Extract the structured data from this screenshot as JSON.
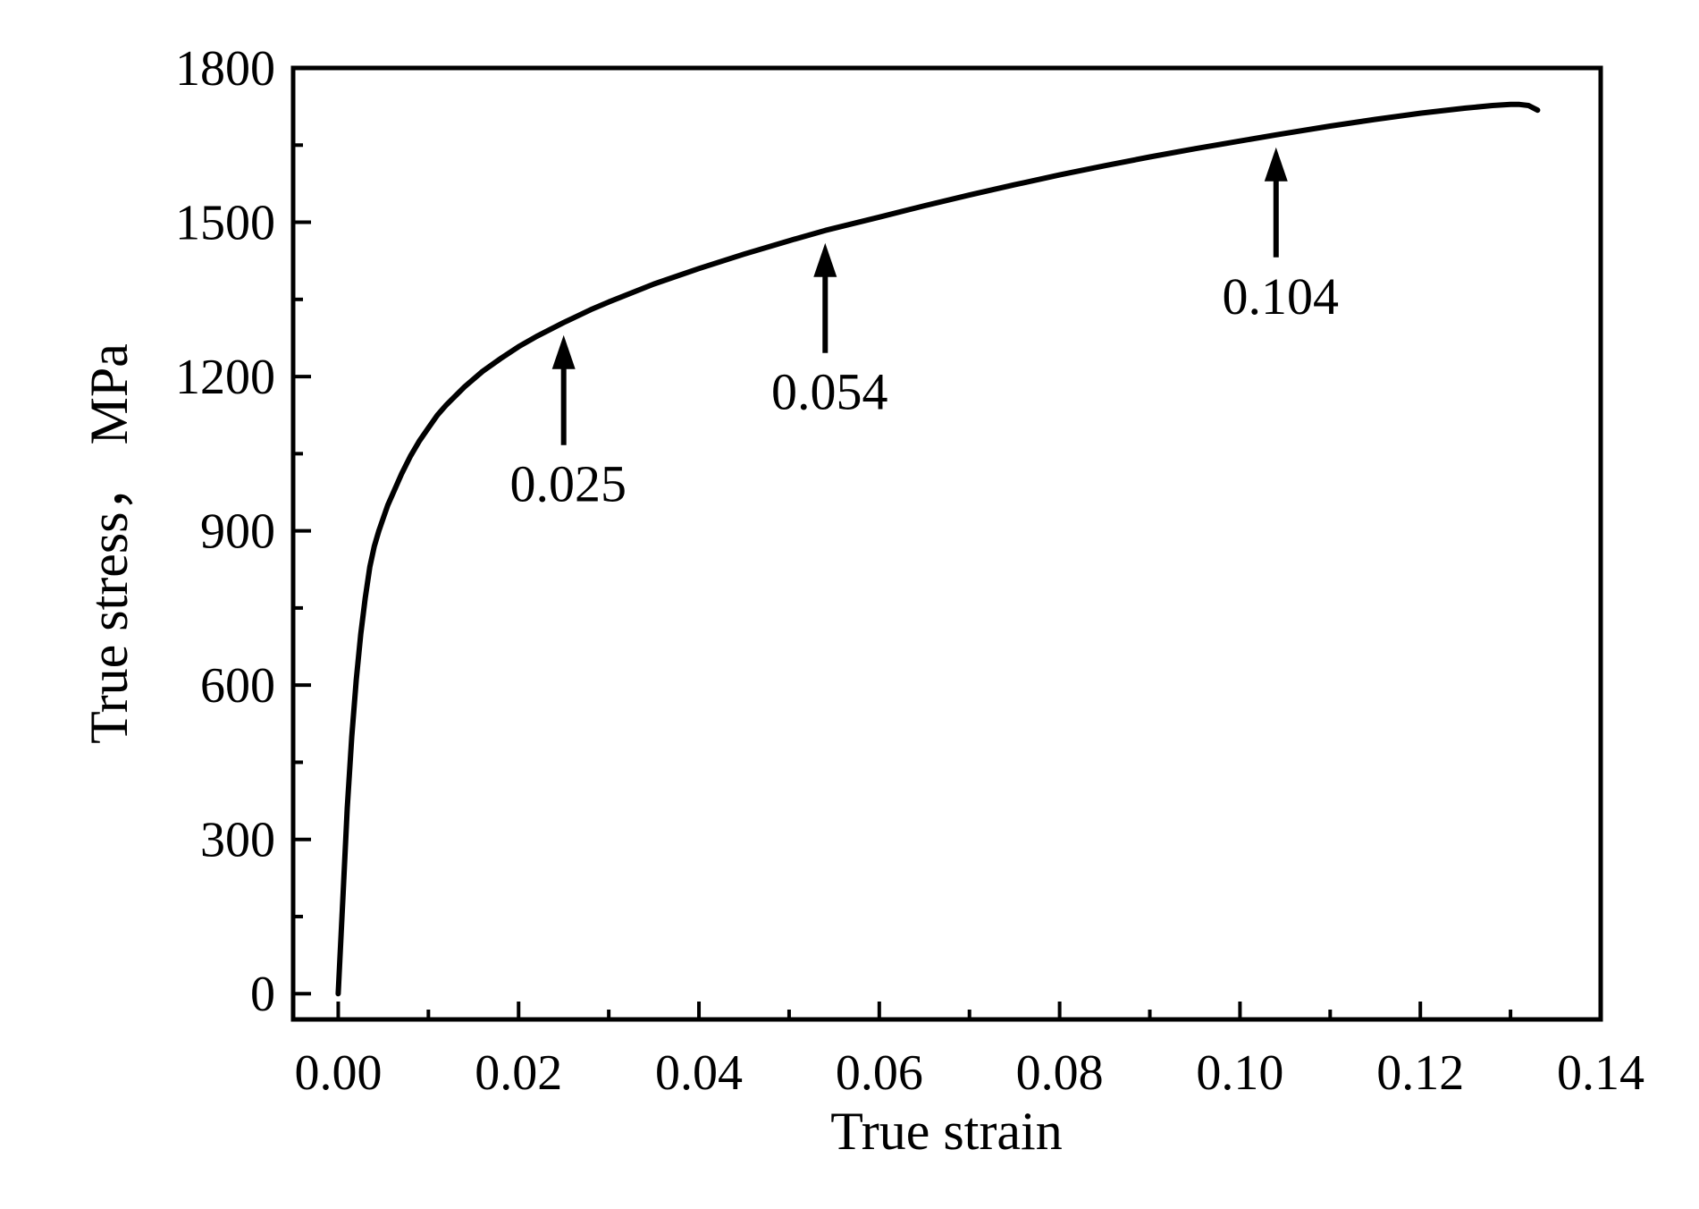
{
  "chart_data": {
    "type": "line",
    "xlabel": "True strain",
    "ylabel": "True stress，  MPa",
    "xlim": [
      -0.005,
      0.14
    ],
    "ylim": [
      -50,
      1800
    ],
    "x_ticks": [
      0.0,
      0.02,
      0.04,
      0.06,
      0.08,
      0.1,
      0.12,
      0.14
    ],
    "x_tick_labels": [
      "0.00",
      "0.02",
      "0.04",
      "0.06",
      "0.08",
      "0.10",
      "0.12",
      "0.14"
    ],
    "x_minor_ticks": [
      0.01,
      0.03,
      0.05,
      0.07,
      0.09,
      0.11,
      0.13
    ],
    "y_ticks": [
      0,
      300,
      600,
      900,
      1200,
      1500,
      1800
    ],
    "y_tick_labels": [
      "0",
      "300",
      "600",
      "900",
      "1200",
      "1500",
      "1800"
    ],
    "y_minor_ticks": [
      150,
      450,
      750,
      1050,
      1350,
      1650
    ],
    "grid": false,
    "line_color": "#000000",
    "series": [
      {
        "x": [
          0.0,
          0.0005,
          0.001,
          0.0015,
          0.002,
          0.0025,
          0.003,
          0.0035,
          0.004,
          0.0045,
          0.005,
          0.0055,
          0.006,
          0.007,
          0.008,
          0.009,
          0.01,
          0.011,
          0.012,
          0.014,
          0.016,
          0.018,
          0.02,
          0.022,
          0.025,
          0.028,
          0.03,
          0.035,
          0.04,
          0.045,
          0.05,
          0.054,
          0.06,
          0.065,
          0.07,
          0.075,
          0.08,
          0.085,
          0.09,
          0.095,
          0.1,
          0.104,
          0.11,
          0.115,
          0.12,
          0.125,
          0.128,
          0.13,
          0.131,
          0.132,
          0.133
        ],
        "y": [
          0,
          180,
          360,
          500,
          610,
          700,
          770,
          830,
          870,
          900,
          925,
          950,
          970,
          1010,
          1045,
          1075,
          1100,
          1125,
          1145,
          1180,
          1210,
          1235,
          1258,
          1278,
          1305,
          1330,
          1345,
          1380,
          1410,
          1438,
          1464,
          1484,
          1510,
          1532,
          1553,
          1573,
          1592,
          1610,
          1627,
          1643,
          1658,
          1670,
          1687,
          1700,
          1712,
          1722,
          1727,
          1729,
          1729,
          1727,
          1718
        ]
      }
    ],
    "annotations": [
      {
        "text": "0.025",
        "x": 0.025
      },
      {
        "text": "0.054",
        "x": 0.054
      },
      {
        "text": "0.104",
        "x": 0.104
      }
    ]
  }
}
